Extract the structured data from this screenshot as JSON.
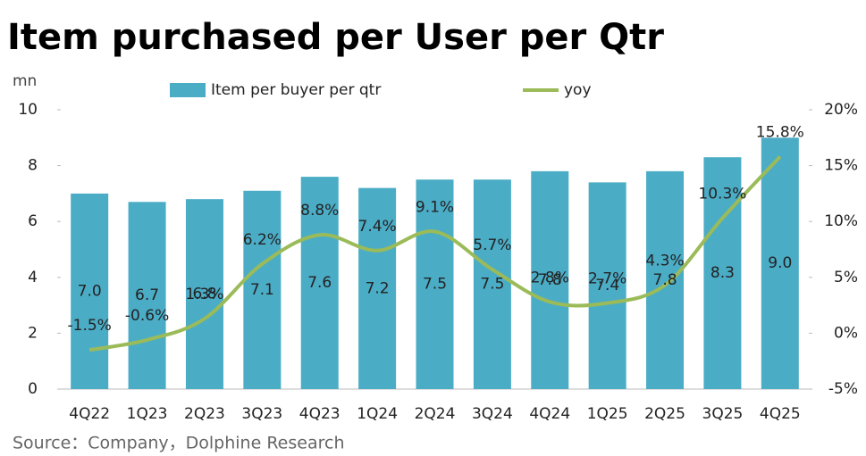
{
  "chart_data": {
    "type": "bar-line",
    "title": "Item purchased per User per Qtr",
    "y_unit": "mn",
    "source": "Source：Company，Dolphine Research",
    "categories": [
      "4Q22",
      "1Q23",
      "2Q23",
      "3Q23",
      "4Q23",
      "1Q24",
      "2Q24",
      "3Q24",
      "4Q24",
      "1Q25",
      "2Q25",
      "3Q25",
      "4Q25"
    ],
    "series": [
      {
        "name": "Item per buyer per qtr",
        "type": "bar",
        "color": "#4bacc6",
        "values": [
          7.0,
          6.7,
          6.8,
          7.1,
          7.6,
          7.2,
          7.5,
          7.5,
          7.8,
          7.4,
          7.8,
          8.3,
          9.0
        ],
        "value_labels": [
          "7.0",
          "6.7",
          "6.8",
          "7.1",
          "7.6",
          "7.2",
          "7.5",
          "7.5",
          "7.8",
          "7.4",
          "7.8",
          "8.3",
          "9.0"
        ]
      },
      {
        "name": "yoy",
        "type": "line",
        "axis": "y2",
        "color": "#9bbb59",
        "values": [
          -1.5,
          -0.6,
          1.3,
          6.2,
          8.8,
          7.4,
          9.1,
          5.7,
          2.8,
          2.7,
          4.3,
          10.3,
          15.8
        ],
        "value_labels": [
          "-1.5%",
          "-0.6%",
          "1.3%",
          "6.2%",
          "8.8%",
          "7.4%",
          "9.1%",
          "5.7%",
          "2.8%",
          "2.7%",
          "4.3%",
          "10.3%",
          "15.8%"
        ]
      }
    ],
    "ylim": [
      0,
      10
    ],
    "yticks": [
      0,
      2,
      4,
      6,
      8,
      10
    ],
    "y2lim": [
      -5,
      20
    ],
    "y2ticks": [
      {
        "value": -5,
        "label": "-5%"
      },
      {
        "value": 0,
        "label": "0%"
      },
      {
        "value": 5,
        "label": "5%"
      },
      {
        "value": 10,
        "label": "10%"
      },
      {
        "value": 15,
        "label": "15%"
      },
      {
        "value": 20,
        "label": "20%"
      }
    ],
    "legend": "top"
  }
}
